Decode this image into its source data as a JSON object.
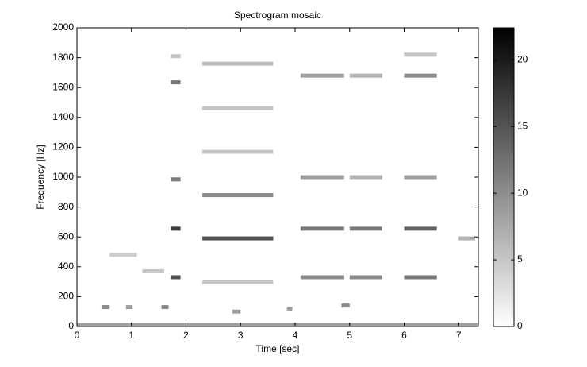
{
  "chart_data": {
    "type": "spectrogram",
    "title": "Spectrogram mosaic",
    "x_label": "Time [sec]",
    "y_label": "Frequency [Hz]",
    "xlim": [
      0,
      7.36
    ],
    "xticks": [
      0,
      1,
      2,
      3,
      4,
      5,
      6,
      7
    ],
    "ylim": [
      0,
      2000
    ],
    "yticks": [
      0,
      200,
      400,
      600,
      800,
      1000,
      1200,
      1400,
      1600,
      1800,
      2000
    ],
    "clim": [
      0,
      22.4
    ],
    "cticks": [
      0,
      5,
      10,
      15,
      20
    ],
    "colormap": "gray-reversed",
    "cells": {
      "t0": [
        0,
        2.3,
        2.3,
        2.3,
        2.3,
        2.3,
        2.3,
        1.72,
        1.72,
        1.72,
        1.72,
        1.72,
        4.1,
        4.1,
        4.1,
        4.1,
        5.0,
        5.0,
        5.0,
        5.0,
        6.0,
        6.0,
        6.0,
        6.0,
        6.0,
        0.45,
        0.9,
        1.55,
        2.85,
        3.85,
        4.85,
        7.0,
        1.2,
        0.6
      ],
      "t1": [
        7.36,
        3.6,
        3.6,
        3.6,
        3.6,
        3.6,
        3.6,
        1.9,
        1.9,
        1.9,
        1.9,
        1.9,
        4.9,
        4.9,
        4.9,
        4.9,
        5.6,
        5.6,
        5.6,
        5.6,
        6.6,
        6.6,
        6.6,
        6.6,
        6.6,
        0.6,
        1.02,
        1.68,
        3.0,
        3.95,
        5.0,
        7.3,
        1.6,
        1.1
      ],
      "f": [
        10,
        590,
        880,
        1170,
        1460,
        1760,
        295,
        330,
        655,
        985,
        1635,
        1810,
        655,
        330,
        1000,
        1680,
        655,
        330,
        1000,
        1680,
        655,
        330,
        1000,
        1680,
        1820,
        130,
        130,
        130,
        100,
        120,
        140,
        590,
        370,
        480
      ],
      "values": [
        10,
        18,
        12,
        6,
        6,
        7,
        6,
        18,
        20,
        14,
        14,
        6,
        14,
        12,
        10,
        10,
        14,
        12,
        8,
        8,
        16,
        14,
        10,
        12,
        6,
        12,
        10,
        12,
        10,
        10,
        12,
        8,
        6,
        5
      ]
    }
  }
}
